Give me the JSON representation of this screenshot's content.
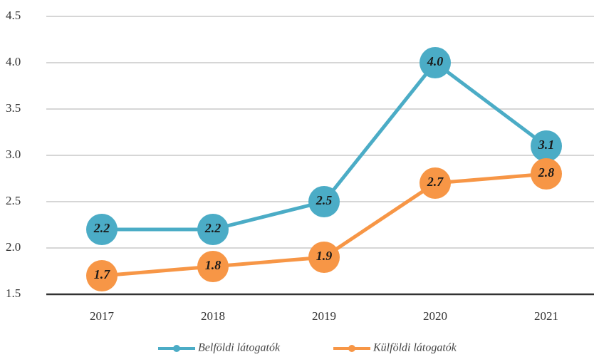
{
  "chart_data": {
    "type": "line",
    "categories": [
      "2017",
      "2018",
      "2019",
      "2020",
      "2021"
    ],
    "series": [
      {
        "name": "Belföldi látogatók",
        "color": "#4bacc6",
        "values": [
          2.2,
          2.2,
          2.5,
          4.0,
          3.1
        ],
        "value_labels": [
          "2.2",
          "2.2",
          "2.5",
          "4.0",
          "3.1"
        ]
      },
      {
        "name": "Külföldi látogatók",
        "color": "#f79646",
        "values": [
          1.7,
          1.8,
          1.9,
          2.7,
          2.8
        ],
        "value_labels": [
          "1.7",
          "1.8",
          "1.9",
          "2.7",
          "2.8"
        ]
      }
    ],
    "ylim": [
      1.5,
      4.5
    ],
    "yticks": [
      1.5,
      {
        "value": 2,
        "label": "2.0"
      },
      2.5,
      {
        "value": 3,
        "label": "3.0"
      },
      3.5,
      {
        "value": 4,
        "label": "4.0"
      },
      4.5
    ],
    "grid": true,
    "legend": "bottom"
  }
}
